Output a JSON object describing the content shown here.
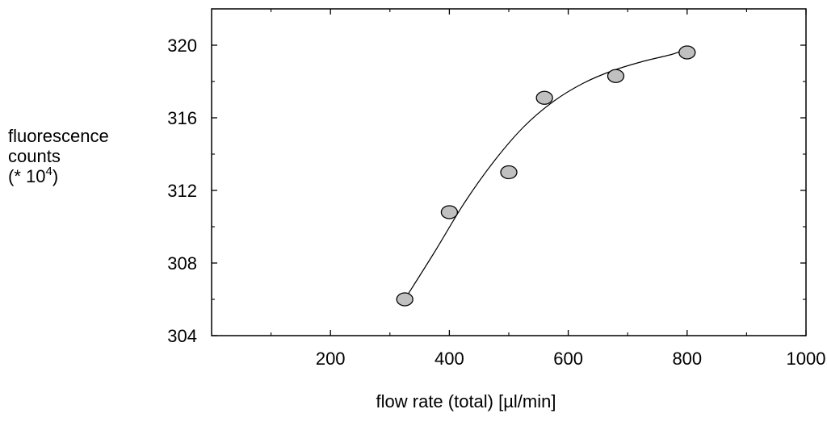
{
  "chart_data": {
    "type": "scatter",
    "title": "",
    "xlabel": "flow rate (total) [µl/min]",
    "ylabel": {
      "line1": "fluorescence",
      "line2": "counts",
      "line3_prefix": "(* 10",
      "line3_exp": "4",
      "line3_suffix": ")"
    },
    "xlim": [
      0,
      1000
    ],
    "ylim": [
      304,
      322
    ],
    "xticks": [
      200,
      400,
      600,
      800,
      1000
    ],
    "yticks": [
      304,
      308,
      312,
      316,
      320
    ],
    "grid": false,
    "points": [
      {
        "x": 325,
        "y": 306.0
      },
      {
        "x": 400,
        "y": 310.8
      },
      {
        "x": 500,
        "y": 313.0
      },
      {
        "x": 560,
        "y": 317.1
      },
      {
        "x": 680,
        "y": 318.3
      },
      {
        "x": 800,
        "y": 319.6
      }
    ],
    "fit_curve": [
      {
        "x": 325,
        "y": 306.0
      },
      {
        "x": 375,
        "y": 308.6
      },
      {
        "x": 425,
        "y": 311.3
      },
      {
        "x": 475,
        "y": 313.6
      },
      {
        "x": 525,
        "y": 315.5
      },
      {
        "x": 575,
        "y": 316.9
      },
      {
        "x": 625,
        "y": 317.9
      },
      {
        "x": 675,
        "y": 318.6
      },
      {
        "x": 725,
        "y": 319.1
      },
      {
        "x": 775,
        "y": 319.5
      },
      {
        "x": 800,
        "y": 319.8
      }
    ],
    "colors": {
      "marker_fill": "#c0c0c0",
      "marker_stroke": "#000000",
      "line": "#000000",
      "axes": "#000000"
    }
  }
}
